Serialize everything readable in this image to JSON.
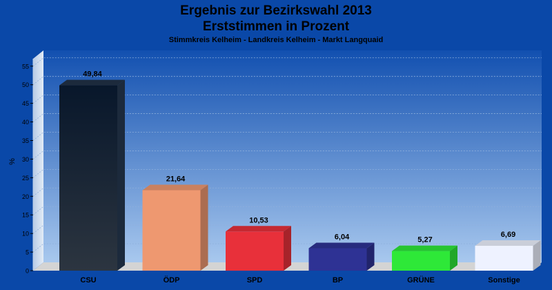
{
  "header": {
    "title_line1": "Ergebnis zur Bezirkswahl 2013",
    "title_line2": "Erststimmen in Prozent",
    "subtitle": "Stimmkreis Kelheim - Landkreis Kelheim - Markt Langquaid"
  },
  "chart_data": {
    "type": "bar",
    "title": "Ergebnis zur Bezirkswahl 2013 – Erststimmen in Prozent",
    "subtitle": "Stimmkreis Kelheim - Landkreis Kelheim - Markt Langquaid",
    "xlabel": "",
    "ylabel": "%",
    "ylim": [
      0,
      57
    ],
    "yticks": [
      0,
      5,
      10,
      15,
      20,
      25,
      30,
      35,
      40,
      45,
      50,
      55
    ],
    "grid": true,
    "categories": [
      "CSU",
      "ÖDP",
      "SPD",
      "BP",
      "GRÜNE",
      "Sonstige"
    ],
    "values": [
      49.84,
      21.64,
      10.53,
      6.04,
      5.27,
      6.69
    ],
    "value_labels": [
      "49,84",
      "21,64",
      "10,53",
      "6,04",
      "5,27",
      "6,69"
    ],
    "colors": [
      "#1c2a3c",
      "#ee9870",
      "#e8303a",
      "#2e3294",
      "#2ee838",
      "#eef2ff"
    ]
  }
}
